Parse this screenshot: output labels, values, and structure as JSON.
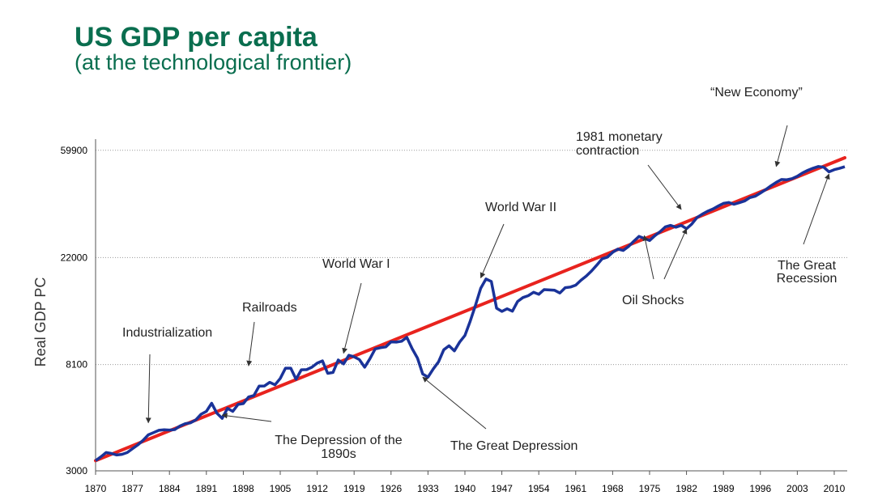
{
  "header": {
    "title": "US GDP per capita",
    "subtitle": "(at the technological frontier)"
  },
  "chart_data": {
    "type": "line",
    "title": "US GDP per capita",
    "subtitle": "(at the technological frontier)",
    "xlabel": "",
    "ylabel": "Real GDP PC",
    "y_scale": "log",
    "xlim": [
      1870,
      2012
    ],
    "ylim": [
      3000,
      65000
    ],
    "x_ticks": [
      1870,
      1877,
      1884,
      1891,
      1898,
      1905,
      1912,
      1919,
      1926,
      1933,
      1940,
      1947,
      1954,
      1961,
      1968,
      1975,
      1982,
      1989,
      1996,
      2003,
      2010
    ],
    "y_ticks": [
      3000,
      8100,
      22000,
      59900
    ],
    "grid": "horizontal dotted",
    "colors": {
      "gdp": "#1a3399",
      "trend": "#e8231e",
      "title": "#0a6e4f"
    },
    "series": [
      {
        "role": "gdp",
        "x": [
          1870,
          1871,
          1872,
          1873,
          1874,
          1875,
          1876,
          1877,
          1878,
          1879,
          1880,
          1881,
          1882,
          1883,
          1884,
          1885,
          1886,
          1887,
          1888,
          1889,
          1890,
          1891,
          1892,
          1893,
          1894,
          1895,
          1896,
          1897,
          1898,
          1899,
          1900,
          1901,
          1902,
          1903,
          1904,
          1905,
          1906,
          1907,
          1908,
          1909,
          1910,
          1911,
          1912,
          1913,
          1914,
          1915,
          1916,
          1917,
          1918,
          1919,
          1920,
          1921,
          1922,
          1923,
          1924,
          1925,
          1926,
          1927,
          1928,
          1929,
          1930,
          1931,
          1932,
          1933,
          1934,
          1935,
          1936,
          1937,
          1938,
          1939,
          1940,
          1941,
          1942,
          1943,
          1944,
          1945,
          1946,
          1947,
          1948,
          1949,
          1950,
          1951,
          1952,
          1953,
          1954,
          1955,
          1956,
          1957,
          1958,
          1959,
          1960,
          1961,
          1962,
          1963,
          1964,
          1965,
          1966,
          1967,
          1968,
          1969,
          1970,
          1971,
          1972,
          1973,
          1974,
          1975,
          1976,
          1977,
          1978,
          1979,
          1980,
          1981,
          1982,
          1983,
          1984,
          1985,
          1986,
          1987,
          1988,
          1989,
          1990,
          1991,
          1992,
          1993,
          1994,
          1995,
          1996,
          1997,
          1998,
          1999,
          2000,
          2001,
          2002,
          2003,
          2004,
          2005,
          2006,
          2007,
          2008,
          2009,
          2010,
          2011,
          2012
        ],
        "values": [
          3300,
          3420,
          3560,
          3530,
          3480,
          3500,
          3560,
          3690,
          3820,
          3990,
          4200,
          4290,
          4380,
          4400,
          4390,
          4410,
          4560,
          4660,
          4700,
          4830,
          5090,
          5230,
          5640,
          5140,
          4900,
          5380,
          5230,
          5580,
          5620,
          5980,
          6060,
          6620,
          6630,
          6860,
          6700,
          7110,
          7830,
          7830,
          7060,
          7710,
          7720,
          7900,
          8200,
          8380,
          7460,
          7520,
          8450,
          8150,
          8830,
          8700,
          8480,
          7900,
          8550,
          9370,
          9480,
          9550,
          10010,
          9980,
          10070,
          10440,
          9400,
          8600,
          7410,
          7200,
          7770,
          8300,
          9300,
          9650,
          9200,
          9990,
          10620,
          12130,
          14070,
          16500,
          18010,
          17600,
          13700,
          13300,
          13630,
          13330,
          14600,
          15140,
          15400,
          15900,
          15600,
          16300,
          16250,
          16200,
          15800,
          16600,
          16700,
          17000,
          17800,
          18500,
          19400,
          20500,
          21750,
          22100,
          23100,
          23800,
          23500,
          24400,
          25600,
          26800,
          26300,
          25800,
          27000,
          28000,
          29300,
          29700,
          29200,
          29700,
          28800,
          30100,
          32000,
          33000,
          33900,
          34600,
          35600,
          36500,
          36800,
          36200,
          36700,
          37300,
          38500,
          39000,
          40200,
          41500,
          43000,
          44400,
          45600,
          45500,
          46000,
          47000,
          48500,
          49700,
          50700,
          51500,
          51200,
          49000,
          50000,
          50600,
          51400
        ]
      },
      {
        "role": "trend",
        "x": [
          1870,
          2012
        ],
        "values": [
          3300,
          55900
        ]
      }
    ],
    "annotations": [
      {
        "label": "Industrialization",
        "target_x": 1880,
        "target_y": 4700
      },
      {
        "label": "Railroads",
        "target_x": 1899,
        "target_y": 8000
      },
      {
        "label": "World War I",
        "target_x": 1917,
        "target_y": 9000
      },
      {
        "label": "The Depression of the",
        "label2": "1890s",
        "target_x": 1894,
        "target_y": 5050
      },
      {
        "label": "The Great Depression",
        "target_x": 1932,
        "target_y": 7200
      },
      {
        "label": "World War II",
        "target_x": 1943,
        "target_y": 18200
      },
      {
        "label": "1981 monetary",
        "label2": "contraction",
        "target_x": 1981,
        "target_y": 34500
      },
      {
        "label": "Oil Shocks",
        "target_x": 1974,
        "target_y": 27000
      },
      {
        "label": "Oil Shocks",
        "target_x": 1982,
        "target_y": 28800
      },
      {
        "label": "“New Economy”",
        "target_x": 1999,
        "target_y": 51500
      },
      {
        "label": "The Great",
        "label2": "Recession",
        "target_x": 2009,
        "target_y": 48000
      }
    ]
  }
}
